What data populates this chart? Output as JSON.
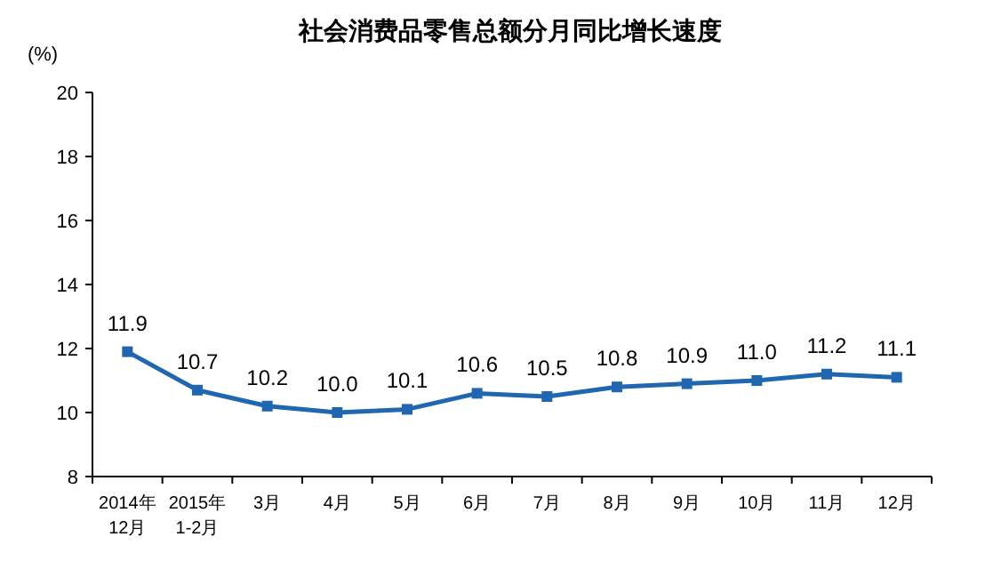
{
  "chart_data": {
    "type": "line",
    "title": "社会消费品零售总额分月同比增长速度",
    "ylabel": "(%)",
    "categories": [
      "2014年\n12月",
      "2015年\n1-2月",
      "3月",
      "4月",
      "5月",
      "6月",
      "7月",
      "8月",
      "9月",
      "10月",
      "11月",
      "12月"
    ],
    "series": [
      {
        "color": "#2166b0",
        "values": [
          11.9,
          10.7,
          10.2,
          10.0,
          10.1,
          10.6,
          10.5,
          10.8,
          10.9,
          11.0,
          11.2,
          11.1
        ],
        "value_labels": [
          "11.9",
          "10.7",
          "10.2",
          "10.0",
          "10.1",
          "10.6",
          "10.5",
          "10.8",
          "10.9",
          "11.0",
          "11.2",
          "11.1"
        ]
      }
    ],
    "ylim": [
      8,
      20
    ],
    "yticks": [
      8,
      10,
      12,
      14,
      16,
      18,
      20
    ],
    "grid": false,
    "marker": "square",
    "line_style": "solid"
  }
}
